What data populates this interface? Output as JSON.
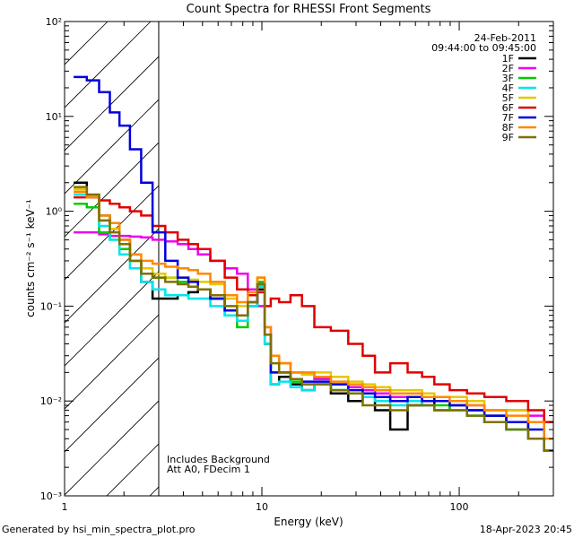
{
  "footer": {
    "generator": "Generated by hsi_min_spectra_plot.pro",
    "timestamp": "18-Apr-2023 20:45"
  },
  "chart_data": {
    "type": "line",
    "style": "step",
    "title": "Count Spectra for RHESSI Front Segments",
    "xlabel": "Energy (keV)",
    "ylabel": "counts cm⁻² s⁻¹ keV⁻¹",
    "xscale": "log",
    "yscale": "log",
    "xlim": [
      1,
      300
    ],
    "ylim": [
      0.001,
      100
    ],
    "x_tick_labels": [
      "1",
      "10",
      "100"
    ],
    "y_tick_labels": [
      "10⁻³",
      "10⁻²",
      "10⁻¹",
      "10⁰",
      "10¹",
      "10²"
    ],
    "date": "24-Feb-2011",
    "time_range": "09:44:00 to 09:45:00",
    "notes": [
      "Includes Background",
      "Att A0, FDecim 1"
    ],
    "hatched_region": [
      1,
      3
    ],
    "legend_position": "top-right",
    "x": [
      1.2,
      1.4,
      1.6,
      1.8,
      2.0,
      2.3,
      2.6,
      3.0,
      3.5,
      4.0,
      4.5,
      5.0,
      6.0,
      7.0,
      8.0,
      9.0,
      10.0,
      10.7,
      11.5,
      13.0,
      15.0,
      17.0,
      20.0,
      25.0,
      30.0,
      35.0,
      40.0,
      50.0,
      60.0,
      70.0,
      80.0,
      100.0,
      120.0,
      150.0,
      200.0,
      250.0,
      290.0
    ],
    "series": [
      {
        "name": "1F",
        "color": "#000000",
        "values": [
          2.0,
          1.4,
          0.9,
          0.75,
          0.5,
          0.3,
          0.18,
          0.12,
          0.12,
          0.13,
          0.14,
          0.15,
          0.12,
          0.09,
          0.07,
          0.1,
          0.15,
          0.04,
          0.015,
          0.018,
          0.015,
          0.013,
          0.015,
          0.012,
          0.01,
          0.011,
          0.008,
          0.005,
          0.009,
          0.011,
          0.008,
          0.009,
          0.008,
          0.007,
          0.006,
          0.004,
          0.003
        ]
      },
      {
        "name": "2F",
        "color": "#ee00ee",
        "values": [
          0.6,
          0.6,
          0.57,
          0.55,
          0.55,
          0.54,
          0.53,
          0.5,
          0.48,
          0.45,
          0.4,
          0.35,
          0.3,
          0.25,
          0.22,
          0.15,
          0.1,
          0.06,
          0.03,
          0.025,
          0.02,
          0.019,
          0.017,
          0.015,
          0.014,
          0.013,
          0.012,
          0.011,
          0.011,
          0.01,
          0.01,
          0.01,
          0.009,
          0.008,
          0.008,
          0.007,
          0.006
        ]
      },
      {
        "name": "3F",
        "color": "#00cc00",
        "values": [
          1.2,
          1.1,
          0.6,
          0.5,
          0.4,
          0.3,
          0.22,
          0.2,
          0.2,
          0.18,
          0.16,
          0.15,
          0.13,
          0.08,
          0.06,
          0.1,
          0.18,
          0.05,
          0.02,
          0.02,
          0.016,
          0.015,
          0.015,
          0.013,
          0.012,
          0.011,
          0.011,
          0.01,
          0.01,
          0.009,
          0.009,
          0.008,
          0.007,
          0.006,
          0.005,
          0.004,
          0.003
        ]
      },
      {
        "name": "4F",
        "color": "#00e5ee",
        "values": [
          1.5,
          1.4,
          0.7,
          0.5,
          0.35,
          0.25,
          0.18,
          0.15,
          0.13,
          0.13,
          0.12,
          0.12,
          0.1,
          0.08,
          0.07,
          0.1,
          0.16,
          0.04,
          0.015,
          0.016,
          0.014,
          0.013,
          0.015,
          0.013,
          0.012,
          0.011,
          0.01,
          0.009,
          0.01,
          0.009,
          0.008,
          0.008,
          0.007,
          0.006,
          0.005,
          0.004,
          0.003
        ]
      },
      {
        "name": "5F",
        "color": "#e5c800",
        "values": [
          1.7,
          1.5,
          0.8,
          0.65,
          0.45,
          0.3,
          0.25,
          0.22,
          0.2,
          0.2,
          0.19,
          0.18,
          0.17,
          0.12,
          0.1,
          0.13,
          0.2,
          0.06,
          0.03,
          0.025,
          0.02,
          0.019,
          0.02,
          0.018,
          0.016,
          0.015,
          0.014,
          0.013,
          0.013,
          0.012,
          0.011,
          0.011,
          0.01,
          0.008,
          0.008,
          0.006,
          0.004
        ]
      },
      {
        "name": "6F",
        "color": "#e00000",
        "values": [
          1.4,
          1.4,
          1.3,
          1.2,
          1.1,
          1.0,
          0.9,
          0.7,
          0.6,
          0.5,
          0.45,
          0.4,
          0.3,
          0.2,
          0.15,
          0.13,
          0.14,
          0.1,
          0.12,
          0.11,
          0.13,
          0.1,
          0.06,
          0.055,
          0.04,
          0.03,
          0.02,
          0.025,
          0.02,
          0.018,
          0.015,
          0.013,
          0.012,
          0.011,
          0.01,
          0.008,
          0.006
        ]
      },
      {
        "name": "7F",
        "color": "#0000dd",
        "values": [
          26.0,
          24.0,
          18.0,
          11.0,
          8.0,
          4.5,
          2.0,
          0.6,
          0.3,
          0.2,
          0.18,
          0.15,
          0.12,
          0.09,
          0.08,
          0.11,
          0.17,
          0.05,
          0.02,
          0.02,
          0.017,
          0.016,
          0.016,
          0.015,
          0.013,
          0.012,
          0.011,
          0.01,
          0.011,
          0.01,
          0.01,
          0.009,
          0.008,
          0.007,
          0.006,
          0.005,
          0.004
        ]
      },
      {
        "name": "8F",
        "color": "#ff8800",
        "values": [
          1.6,
          1.4,
          0.9,
          0.75,
          0.5,
          0.35,
          0.3,
          0.28,
          0.26,
          0.25,
          0.24,
          0.22,
          0.18,
          0.13,
          0.11,
          0.14,
          0.2,
          0.06,
          0.03,
          0.025,
          0.02,
          0.02,
          0.018,
          0.016,
          0.015,
          0.014,
          0.013,
          0.012,
          0.012,
          0.011,
          0.011,
          0.01,
          0.009,
          0.008,
          0.007,
          0.006,
          0.004
        ]
      },
      {
        "name": "9F",
        "color": "#807000",
        "values": [
          1.8,
          1.5,
          0.8,
          0.6,
          0.45,
          0.3,
          0.22,
          0.2,
          0.18,
          0.17,
          0.16,
          0.15,
          0.13,
          0.1,
          0.08,
          0.11,
          0.17,
          0.05,
          0.025,
          0.02,
          0.017,
          0.015,
          0.015,
          0.013,
          0.012,
          0.009,
          0.009,
          0.008,
          0.009,
          0.009,
          0.008,
          0.008,
          0.007,
          0.006,
          0.005,
          0.004,
          0.003
        ]
      }
    ]
  }
}
